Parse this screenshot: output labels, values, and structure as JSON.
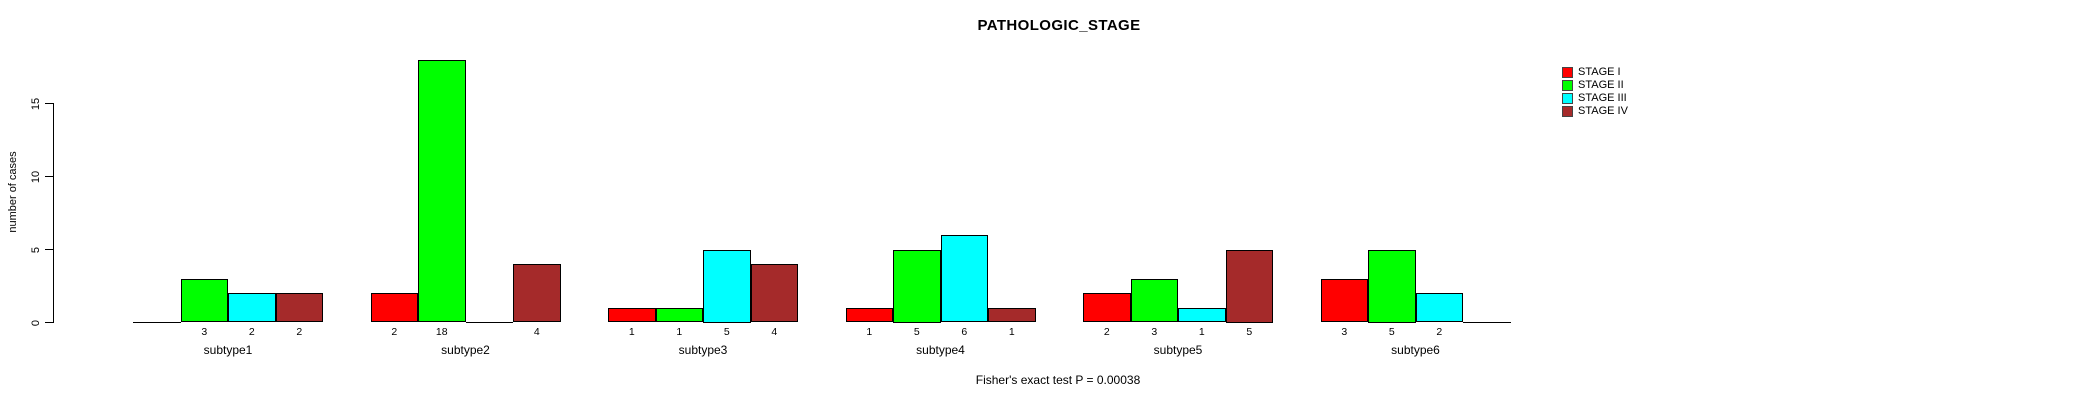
{
  "chart_data": {
    "type": "bar",
    "title": "PATHOLOGIC_STAGE",
    "ylabel": "number of cases",
    "xlabel": "",
    "categories": [
      "subtype1",
      "subtype2",
      "subtype3",
      "subtype4",
      "subtype5",
      "subtype6"
    ],
    "series": [
      {
        "name": "STAGE I",
        "color": "#FF0000",
        "values": [
          0,
          2,
          1,
          1,
          2,
          3
        ]
      },
      {
        "name": "STAGE II",
        "color": "#00FF00",
        "values": [
          3,
          18,
          1,
          5,
          3,
          5
        ]
      },
      {
        "name": "STAGE III",
        "color": "#00FFFF",
        "values": [
          2,
          0,
          5,
          6,
          1,
          2
        ]
      },
      {
        "name": "STAGE IV",
        "color": "#A52A2A",
        "values": [
          2,
          4,
          4,
          1,
          5,
          0
        ]
      }
    ],
    "bar_value_labels": "values shown under each nonzero bar",
    "yticks": [
      0,
      5,
      10,
      15
    ],
    "ylim": [
      0,
      18
    ],
    "grid": false,
    "legend_position": "top-right",
    "footnote": "Fisher's exact test P = 0.00038"
  }
}
